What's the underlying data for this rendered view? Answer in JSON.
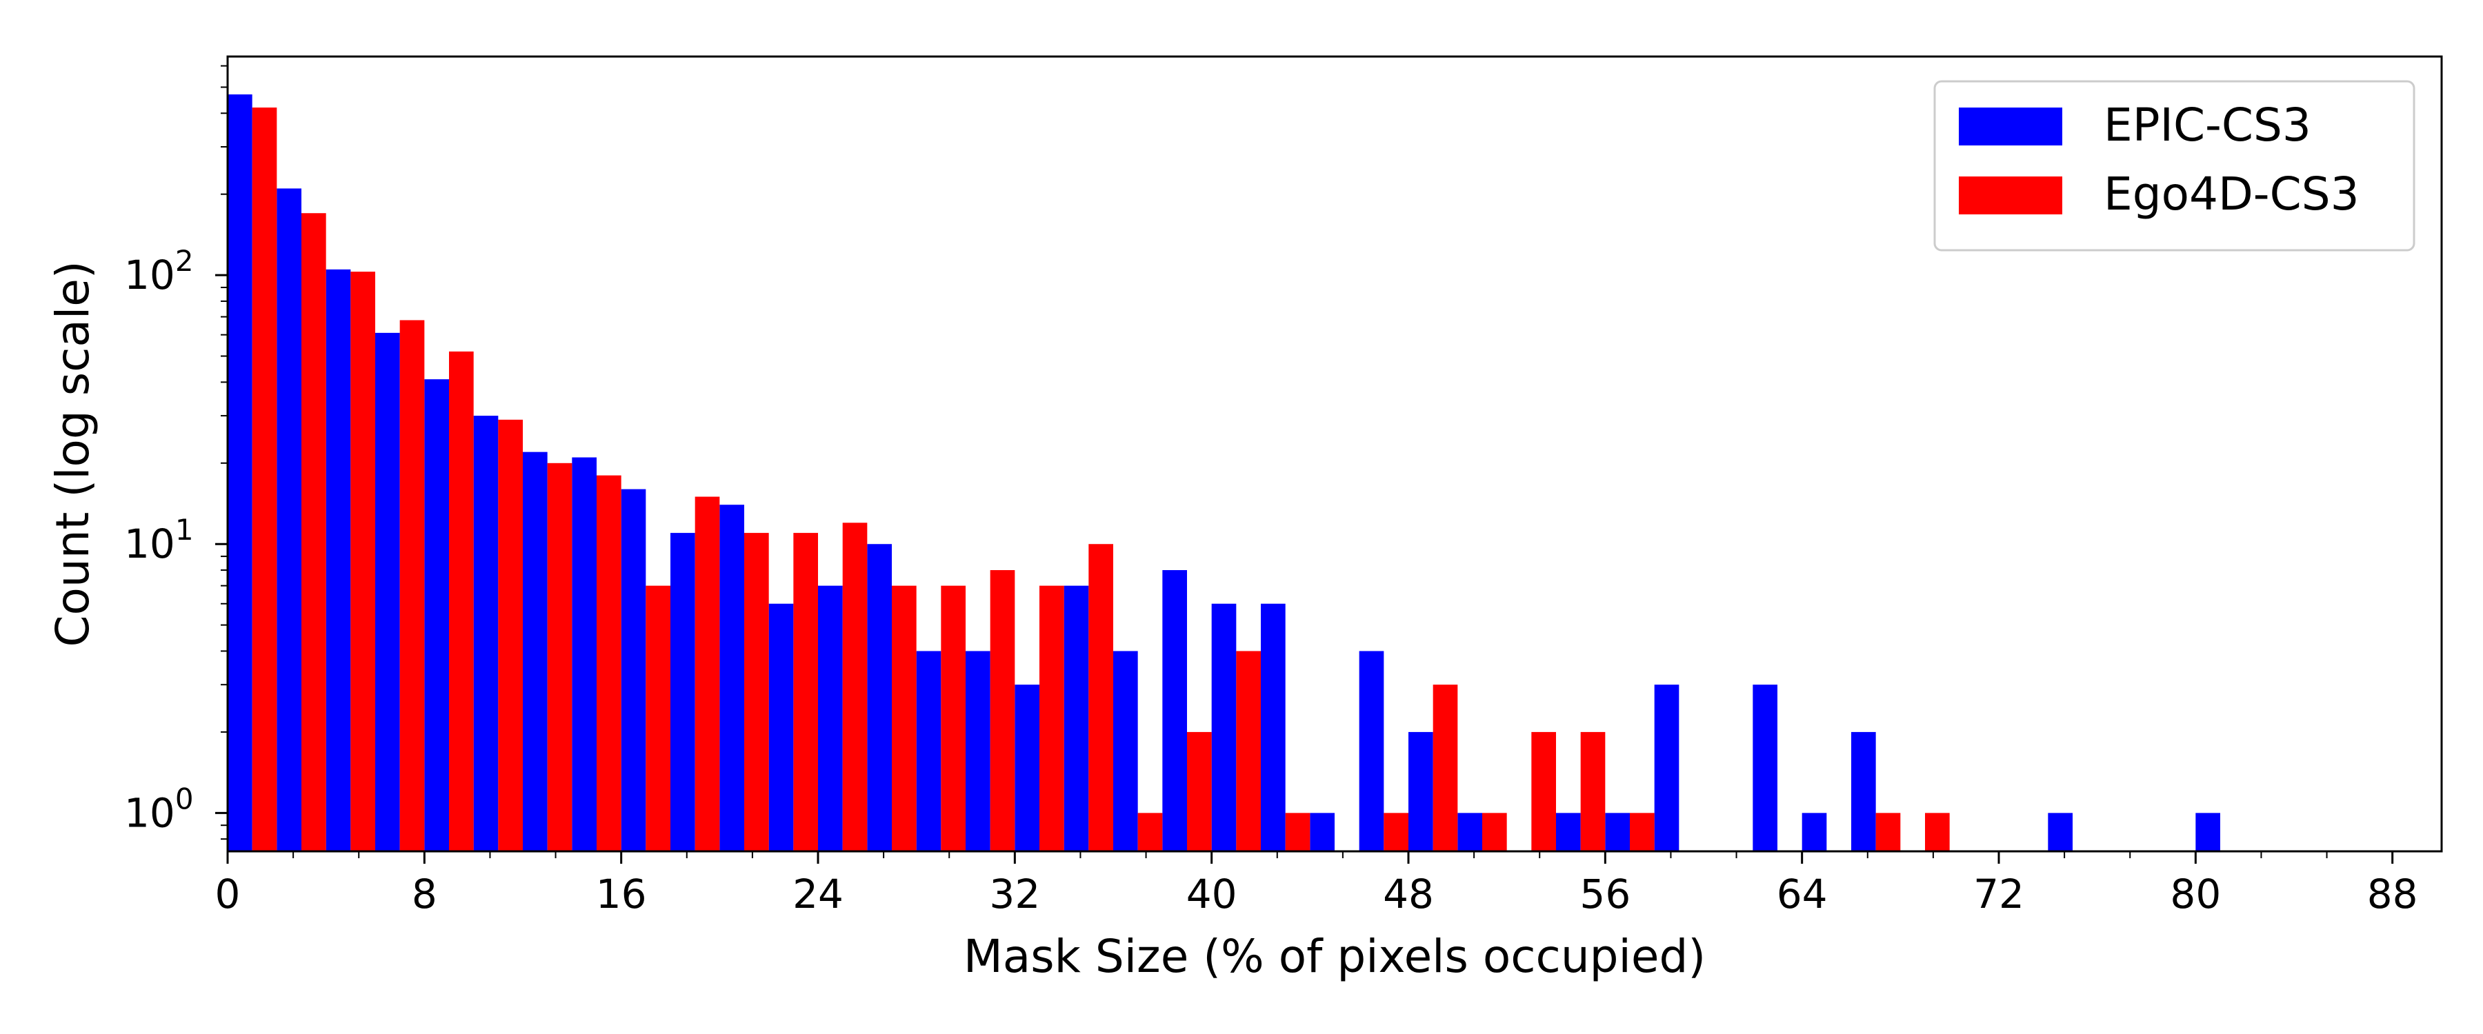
{
  "chart_data": {
    "type": "bar",
    "title": "",
    "xlabel": "Mask Size (% of pixels occupied)",
    "ylabel": "Count (log scale)",
    "yscale": "log",
    "xlim": [
      0,
      90
    ],
    "ylim": [
      0.72,
      650
    ],
    "bin_width": 2,
    "x_ticks": [
      "0",
      "8",
      "16",
      "24",
      "32",
      "40",
      "48",
      "56",
      "64",
      "72",
      "80",
      "88"
    ],
    "y_ticks": [
      {
        "base": "10",
        "exp": "0"
      },
      {
        "base": "10",
        "exp": "1"
      },
      {
        "base": "10",
        "exp": "2"
      }
    ],
    "legend_position": "upper right",
    "bin_starts": [
      0,
      2,
      4,
      6,
      8,
      10,
      12,
      14,
      16,
      18,
      20,
      22,
      24,
      26,
      28,
      30,
      32,
      34,
      36,
      38,
      40,
      42,
      44,
      46,
      48,
      50,
      52,
      54,
      56,
      58,
      60,
      62,
      64,
      66,
      68,
      70,
      72,
      74,
      76,
      78,
      80,
      82,
      84,
      86,
      88
    ],
    "series": [
      {
        "name": "EPIC-CS3",
        "color": "#0000ff",
        "values": [
          470,
          210,
          105,
          61,
          41,
          30,
          22,
          21,
          16,
          11,
          14,
          6,
          7,
          10,
          4,
          4,
          3,
          7,
          4,
          8,
          6,
          6,
          1,
          4,
          2,
          1,
          0,
          1,
          1,
          3,
          0,
          3,
          1,
          2,
          0,
          0,
          0,
          1,
          0,
          0,
          1,
          0,
          0,
          0,
          0
        ]
      },
      {
        "name": "Ego4D-CS3",
        "color": "#ff0000",
        "values": [
          420,
          170,
          103,
          68,
          52,
          29,
          20,
          18,
          7,
          15,
          11,
          11,
          12,
          7,
          7,
          8,
          7,
          10,
          1,
          2,
          4,
          1,
          0,
          1,
          3,
          1,
          2,
          2,
          1,
          0,
          0,
          0,
          0,
          1,
          1,
          0,
          0,
          0,
          0,
          0,
          0,
          0,
          0,
          0,
          0
        ]
      }
    ]
  }
}
